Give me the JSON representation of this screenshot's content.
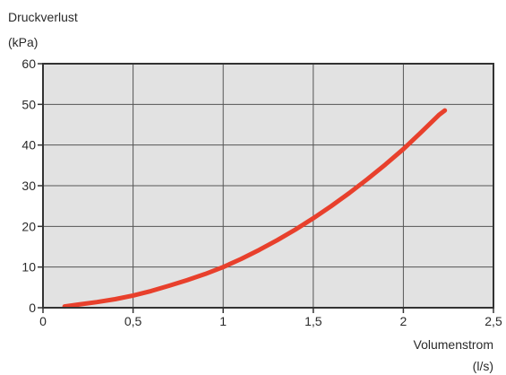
{
  "chart_data": {
    "type": "line",
    "ylabel_line1": "Druckverlust",
    "ylabel_line2": "(kPa)",
    "xlabel_line1": "Volumenstrom",
    "xlabel_line2": "(l/s)",
    "xlim": [
      0,
      2.5
    ],
    "ylim": [
      0,
      60
    ],
    "x_ticks": [
      0,
      0.5,
      1,
      1.5,
      2,
      2.5
    ],
    "x_tick_labels": [
      "0",
      "0,5",
      "1",
      "1,5",
      "2",
      "2,5"
    ],
    "y_ticks": [
      0,
      10,
      20,
      30,
      40,
      50,
      60
    ],
    "y_tick_labels": [
      "0",
      "10",
      "20",
      "30",
      "40",
      "50",
      "60"
    ],
    "grid": true,
    "plot_background": "#e2e2e2",
    "series": [
      {
        "color": "#e8402c",
        "x": [
          0.12,
          0.2,
          0.3,
          0.4,
          0.5,
          0.6,
          0.7,
          0.8,
          0.9,
          1.0,
          1.1,
          1.2,
          1.3,
          1.4,
          1.5,
          1.6,
          1.7,
          1.8,
          1.9,
          2.0,
          2.1,
          2.2,
          2.23
        ],
        "y": [
          0.3,
          0.8,
          1.4,
          2.1,
          3.0,
          4.1,
          5.4,
          6.8,
          8.3,
          10.0,
          12.0,
          14.2,
          16.6,
          19.2,
          22.0,
          25.0,
          28.2,
          31.6,
          35.2,
          39.0,
          43.2,
          47.5,
          48.5
        ]
      }
    ]
  }
}
